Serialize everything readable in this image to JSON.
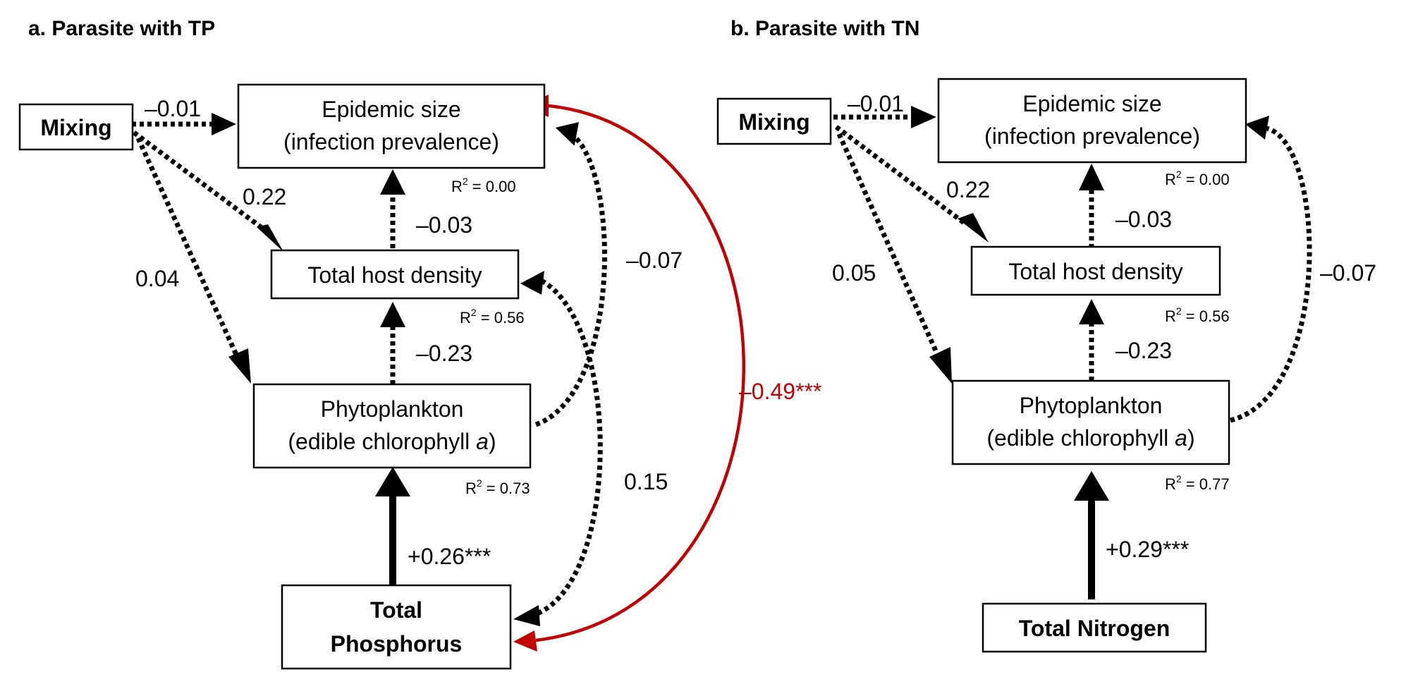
{
  "panels": {
    "a": {
      "title": "a. Parasite with TP",
      "nodes": {
        "mixing": "Mixing",
        "epidemic_line1": "Epidemic size",
        "epidemic_line2": "(infection prevalence)",
        "host": "Total host density",
        "phyto_line1": "Phytoplankton",
        "phyto_line2_main": "(edible chlorophyll ",
        "phyto_line2_italic": "a",
        "phyto_line2_end": ")",
        "nutrient_line1": "Total",
        "nutrient_line2": "Phosphorus"
      },
      "r2": {
        "epidemic": "0.00",
        "host": "0.56",
        "phyto": "0.73"
      },
      "coefficients": {
        "mixing_epidemic": "–0.01",
        "mixing_host": "0.22",
        "mixing_phyto": "0.04",
        "host_epidemic": "–0.03",
        "phyto_host": "–0.23",
        "phyto_epidemic": "–0.07",
        "nutrient_host": "0.15",
        "nutrient_epidemic": "–0.49***",
        "nutrient_phyto": "+0.26***"
      }
    },
    "b": {
      "title": "b. Parasite with TN",
      "nodes": {
        "mixing": "Mixing",
        "epidemic_line1": "Epidemic size",
        "epidemic_line2": "(infection prevalence)",
        "host": "Total host density",
        "phyto_line1": "Phytoplankton",
        "phyto_line2_main": "(edible chlorophyll ",
        "phyto_line2_italic": "a",
        "phyto_line2_end": ")",
        "nutrient": "Total Nitrogen"
      },
      "r2": {
        "epidemic": "0.00",
        "host": "0.56",
        "phyto": "0.77"
      },
      "coefficients": {
        "mixing_epidemic": "–0.01",
        "mixing_host": "0.22",
        "mixing_phyto": "0.05",
        "host_epidemic": "–0.03",
        "phyto_host": "–0.23",
        "phyto_epidemic": "–0.07",
        "nutrient_phyto": "+0.29***"
      }
    }
  },
  "r2_label": "R",
  "r2_sup": "2",
  "r2_eq": " = ",
  "colors": {
    "significant_negative": "#c00000",
    "path": "#000000"
  }
}
